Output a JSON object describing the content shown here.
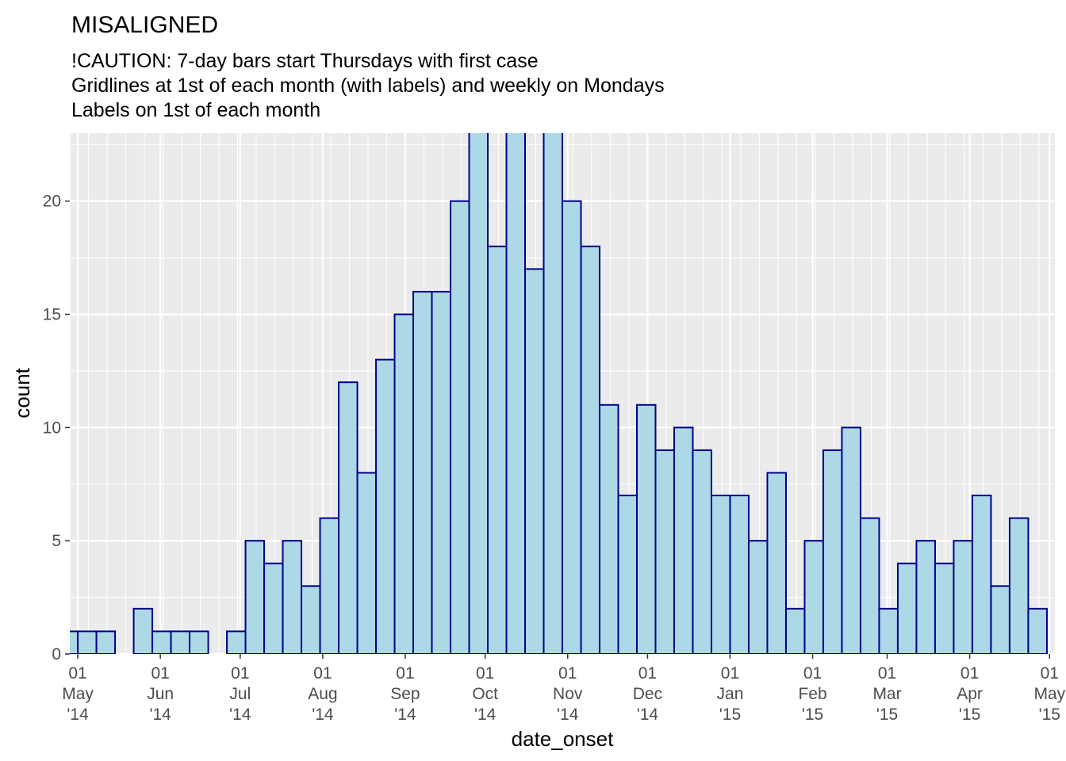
{
  "chart_data": {
    "type": "bar",
    "title": "MISALIGNED",
    "subtitle_lines": [
      "!CAUTION: 7-day bars start Thursdays with first case",
      "Gridlines at 1st of each month (with labels) and weekly on Mondays",
      "Labels on 1st of each month"
    ],
    "xlabel": "date_onset",
    "ylabel": "count",
    "ylim": [
      0,
      23
    ],
    "y_ticks": [
      0,
      5,
      10,
      15,
      20
    ],
    "xlim": [
      "2014-04-28",
      "2015-05-03"
    ],
    "bin_width_days": 7,
    "bar_fill": "#add8e6",
    "bar_outline": "#00008b",
    "panel_background": "#ebebeb",
    "grid_color": "#ffffff",
    "grid": true,
    "legend": "none",
    "weeks": [
      {
        "start": "2014-04-24",
        "count": 1
      },
      {
        "start": "2014-05-01",
        "count": 1
      },
      {
        "start": "2014-05-08",
        "count": 1
      },
      {
        "start": "2014-05-15",
        "count": 0
      },
      {
        "start": "2014-05-22",
        "count": 2
      },
      {
        "start": "2014-05-29",
        "count": 1
      },
      {
        "start": "2014-06-05",
        "count": 1
      },
      {
        "start": "2014-06-12",
        "count": 1
      },
      {
        "start": "2014-06-19",
        "count": 0
      },
      {
        "start": "2014-06-26",
        "count": 1
      },
      {
        "start": "2014-07-03",
        "count": 5
      },
      {
        "start": "2014-07-10",
        "count": 4
      },
      {
        "start": "2014-07-17",
        "count": 5
      },
      {
        "start": "2014-07-24",
        "count": 3
      },
      {
        "start": "2014-07-31",
        "count": 6
      },
      {
        "start": "2014-08-07",
        "count": 12
      },
      {
        "start": "2014-08-14",
        "count": 8
      },
      {
        "start": "2014-08-21",
        "count": 13
      },
      {
        "start": "2014-08-28",
        "count": 15
      },
      {
        "start": "2014-09-04",
        "count": 16
      },
      {
        "start": "2014-09-11",
        "count": 16
      },
      {
        "start": "2014-09-18",
        "count": 20
      },
      {
        "start": "2014-09-25",
        "count": 24
      },
      {
        "start": "2014-10-02",
        "count": 18
      },
      {
        "start": "2014-10-09",
        "count": 24
      },
      {
        "start": "2014-10-16",
        "count": 17
      },
      {
        "start": "2014-10-23",
        "count": 24
      },
      {
        "start": "2014-10-30",
        "count": 20
      },
      {
        "start": "2014-11-06",
        "count": 18
      },
      {
        "start": "2014-11-13",
        "count": 11
      },
      {
        "start": "2014-11-20",
        "count": 7
      },
      {
        "start": "2014-11-27",
        "count": 11
      },
      {
        "start": "2014-12-04",
        "count": 9
      },
      {
        "start": "2014-12-11",
        "count": 10
      },
      {
        "start": "2014-12-18",
        "count": 9
      },
      {
        "start": "2014-12-25",
        "count": 7
      },
      {
        "start": "2015-01-01",
        "count": 7
      },
      {
        "start": "2015-01-08",
        "count": 5
      },
      {
        "start": "2015-01-15",
        "count": 8
      },
      {
        "start": "2015-01-22",
        "count": 2
      },
      {
        "start": "2015-01-29",
        "count": 5
      },
      {
        "start": "2015-02-05",
        "count": 9
      },
      {
        "start": "2015-02-12",
        "count": 10
      },
      {
        "start": "2015-02-19",
        "count": 6
      },
      {
        "start": "2015-02-26",
        "count": 2
      },
      {
        "start": "2015-03-05",
        "count": 4
      },
      {
        "start": "2015-03-12",
        "count": 5
      },
      {
        "start": "2015-03-19",
        "count": 4
      },
      {
        "start": "2015-03-26",
        "count": 5
      },
      {
        "start": "2015-04-02",
        "count": 7
      },
      {
        "start": "2015-04-09",
        "count": 3
      },
      {
        "start": "2015-04-16",
        "count": 6
      },
      {
        "start": "2015-04-23",
        "count": 2
      }
    ],
    "month_ticks": [
      {
        "date": "2014-05-01",
        "day": "01",
        "month": "May",
        "year": "'14"
      },
      {
        "date": "2014-06-01",
        "day": "01",
        "month": "Jun",
        "year": "'14"
      },
      {
        "date": "2014-07-01",
        "day": "01",
        "month": "Jul",
        "year": "'14"
      },
      {
        "date": "2014-08-01",
        "day": "01",
        "month": "Aug",
        "year": "'14"
      },
      {
        "date": "2014-09-01",
        "day": "01",
        "month": "Sep",
        "year": "'14"
      },
      {
        "date": "2014-10-01",
        "day": "01",
        "month": "Oct",
        "year": "'14"
      },
      {
        "date": "2014-11-01",
        "day": "01",
        "month": "Nov",
        "year": "'14"
      },
      {
        "date": "2014-12-01",
        "day": "01",
        "month": "Dec",
        "year": "'14"
      },
      {
        "date": "2015-01-01",
        "day": "01",
        "month": "Jan",
        "year": "'15"
      },
      {
        "date": "2015-02-01",
        "day": "01",
        "month": "Feb",
        "year": "'15"
      },
      {
        "date": "2015-03-01",
        "day": "01",
        "month": "Mar",
        "year": "'15"
      },
      {
        "date": "2015-04-01",
        "day": "01",
        "month": "Apr",
        "year": "'15"
      },
      {
        "date": "2015-05-01",
        "day": "01",
        "month": "May",
        "year": "'15"
      }
    ],
    "minor_grid": "weekly on Mondays"
  }
}
